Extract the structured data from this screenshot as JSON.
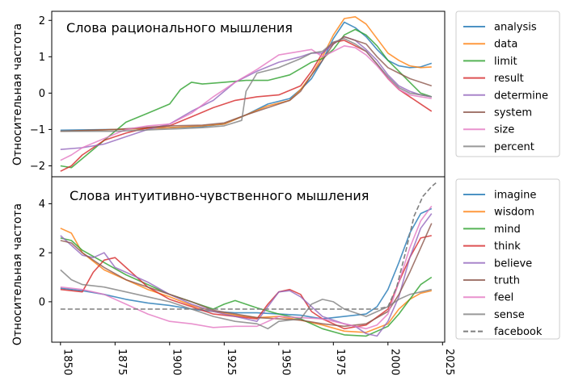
{
  "chart_data": [
    {
      "type": "line",
      "title": "Слова рационального мышления",
      "ylabel": "Относительная частота",
      "xlim": [
        1846,
        2026
      ],
      "ylim": [
        -2.3,
        2.25
      ],
      "yticks": [
        -2,
        -1,
        0,
        1,
        2
      ],
      "legend": "outside-right",
      "series": [
        {
          "name": "analysis",
          "color": "#1f77b4",
          "x": [
            1850,
            1875,
            1900,
            1915,
            1925,
            1935,
            1945,
            1955,
            1960,
            1965,
            1970,
            1975,
            1980,
            1985,
            1990,
            1995,
            2000,
            2005,
            2010,
            2015,
            2020
          ],
          "y": [
            -1.02,
            -1.0,
            -0.95,
            -0.92,
            -0.85,
            -0.6,
            -0.3,
            -0.15,
            0.1,
            0.4,
            0.9,
            1.5,
            1.95,
            1.8,
            1.55,
            1.2,
            0.9,
            0.75,
            0.7,
            0.72,
            0.82
          ]
        },
        {
          "name": "data",
          "color": "#ff7f0e",
          "x": [
            1850,
            1875,
            1900,
            1915,
            1925,
            1935,
            1945,
            1955,
            1960,
            1965,
            1970,
            1975,
            1980,
            1985,
            1990,
            1995,
            2000,
            2005,
            2010,
            2015,
            2020
          ],
          "y": [
            -1.05,
            -1.0,
            -0.95,
            -0.9,
            -0.85,
            -0.6,
            -0.35,
            -0.2,
            0.1,
            0.5,
            1.0,
            1.6,
            2.05,
            2.1,
            1.9,
            1.5,
            1.1,
            0.9,
            0.75,
            0.7,
            0.72
          ]
        },
        {
          "name": "limit",
          "color": "#2ca02c",
          "x": [
            1850,
            1855,
            1860,
            1870,
            1880,
            1890,
            1900,
            1905,
            1910,
            1915,
            1925,
            1935,
            1945,
            1955,
            1965,
            1970,
            1975,
            1980,
            1985,
            1990,
            1995,
            2000,
            2005,
            2010,
            2015,
            2020
          ],
          "y": [
            -2.0,
            -2.05,
            -1.8,
            -1.3,
            -0.8,
            -0.55,
            -0.3,
            0.1,
            0.3,
            0.25,
            0.3,
            0.35,
            0.35,
            0.5,
            0.85,
            0.95,
            1.2,
            1.6,
            1.75,
            1.6,
            1.3,
            0.9,
            0.6,
            0.3,
            0.0,
            -0.1
          ]
        },
        {
          "name": "result",
          "color": "#d62728",
          "x": [
            1850,
            1855,
            1860,
            1870,
            1880,
            1890,
            1900,
            1910,
            1920,
            1930,
            1940,
            1950,
            1960,
            1965,
            1970,
            1975,
            1980,
            1985,
            1990,
            1995,
            2000,
            2005,
            2010,
            2015,
            2020
          ],
          "y": [
            -2.15,
            -2.0,
            -1.7,
            -1.3,
            -1.1,
            -0.95,
            -0.9,
            -0.65,
            -0.4,
            -0.2,
            -0.1,
            -0.05,
            0.2,
            0.6,
            1.1,
            1.4,
            1.45,
            1.3,
            1.15,
            0.8,
            0.4,
            0.1,
            -0.1,
            -0.3,
            -0.5
          ]
        },
        {
          "name": "determine",
          "color": "#9467bd",
          "x": [
            1850,
            1860,
            1870,
            1880,
            1890,
            1900,
            1910,
            1920,
            1930,
            1940,
            1950,
            1960,
            1965,
            1970,
            1975,
            1980,
            1985,
            1990,
            1995,
            2000,
            2005,
            2010,
            2015,
            2020
          ],
          "y": [
            -1.55,
            -1.5,
            -1.4,
            -1.2,
            -1.0,
            -0.85,
            -0.5,
            -0.2,
            0.3,
            0.6,
            0.85,
            1.0,
            1.1,
            1.1,
            1.35,
            1.55,
            1.45,
            1.2,
            0.9,
            0.5,
            0.2,
            0.05,
            -0.05,
            -0.1
          ]
        },
        {
          "name": "system",
          "color": "#8c564b",
          "x": [
            1850,
            1875,
            1900,
            1915,
            1925,
            1935,
            1945,
            1955,
            1960,
            1965,
            1970,
            1975,
            1980,
            1985,
            1990,
            1995,
            2000,
            2005,
            2010,
            2015,
            2020
          ],
          "y": [
            -1.05,
            -1.0,
            -0.9,
            -0.88,
            -0.82,
            -0.6,
            -0.4,
            -0.2,
            0.05,
            0.5,
            0.9,
            1.35,
            1.55,
            1.45,
            1.35,
            1.0,
            0.7,
            0.55,
            0.4,
            0.3,
            0.2
          ]
        },
        {
          "name": "size",
          "color": "#e377c2",
          "x": [
            1850,
            1855,
            1860,
            1870,
            1880,
            1890,
            1900,
            1910,
            1920,
            1930,
            1940,
            1950,
            1960,
            1965,
            1970,
            1975,
            1980,
            1985,
            1990,
            1995,
            2000,
            2005,
            2010,
            2015,
            2020
          ],
          "y": [
            -1.85,
            -1.7,
            -1.5,
            -1.25,
            -1.0,
            -0.9,
            -0.85,
            -0.55,
            -0.1,
            0.3,
            0.65,
            1.05,
            1.15,
            1.2,
            1.0,
            1.15,
            1.3,
            1.25,
            1.05,
            0.75,
            0.4,
            0.1,
            -0.05,
            -0.1,
            -0.15
          ]
        },
        {
          "name": "percent",
          "color": "#7f7f7f",
          "x": [
            1850,
            1875,
            1895,
            1905,
            1915,
            1925,
            1933,
            1935,
            1940,
            1950,
            1960,
            1965,
            1970,
            1975,
            1980,
            1985,
            1990,
            1995,
            2000,
            2005,
            2010,
            2015,
            2020
          ],
          "y": [
            -1.05,
            -1.05,
            -1.0,
            -0.98,
            -0.95,
            -0.9,
            -0.75,
            0.05,
            0.55,
            0.7,
            0.95,
            1.1,
            1.15,
            1.4,
            1.5,
            1.35,
            1.15,
            0.8,
            0.45,
            0.15,
            0.0,
            -0.05,
            -0.1
          ]
        }
      ]
    },
    {
      "type": "line",
      "title": "Слова интуитивно-чувственного мышления",
      "ylabel": "Относительная частота",
      "xlabel": "",
      "xlim": [
        1846,
        2026
      ],
      "ylim": [
        -1.65,
        5.1
      ],
      "yticks": [
        0,
        2,
        4
      ],
      "xticks": [
        1850,
        1875,
        1900,
        1925,
        1950,
        1975,
        2000,
        2025
      ],
      "legend": "outside-right",
      "series": [
        {
          "name": "imagine",
          "color": "#1f77b4",
          "x": [
            1850,
            1860,
            1870,
            1880,
            1890,
            1900,
            1910,
            1920,
            1930,
            1940,
            1950,
            1960,
            1970,
            1980,
            1990,
            1995,
            2000,
            2005,
            2010,
            2015,
            2020
          ],
          "y": [
            0.55,
            0.45,
            0.3,
            0.1,
            -0.05,
            -0.15,
            -0.3,
            -0.4,
            -0.45,
            -0.45,
            -0.5,
            -0.55,
            -0.7,
            -0.6,
            -0.5,
            -0.2,
            0.5,
            1.6,
            2.8,
            3.6,
            3.8
          ]
        },
        {
          "name": "wisdom",
          "color": "#ff7f0e",
          "x": [
            1850,
            1855,
            1860,
            1870,
            1880,
            1890,
            1900,
            1910,
            1920,
            1930,
            1940,
            1950,
            1960,
            1970,
            1980,
            1990,
            2000,
            2005,
            2010,
            2015,
            2020
          ],
          "y": [
            3.0,
            2.8,
            2.0,
            1.3,
            0.9,
            0.5,
            0.2,
            -0.15,
            -0.4,
            -0.55,
            -0.65,
            -0.6,
            -0.75,
            -0.95,
            -1.2,
            -1.25,
            -0.9,
            -0.3,
            0.1,
            0.35,
            0.45
          ]
        },
        {
          "name": "mind",
          "color": "#2ca02c",
          "x": [
            1850,
            1855,
            1860,
            1870,
            1880,
            1890,
            1900,
            1910,
            1920,
            1925,
            1930,
            1940,
            1950,
            1960,
            1970,
            1980,
            1990,
            2000,
            2005,
            2010,
            2015,
            2020
          ],
          "y": [
            2.6,
            2.5,
            2.1,
            1.6,
            1.1,
            0.7,
            0.3,
            0.0,
            -0.3,
            -0.1,
            0.05,
            -0.25,
            -0.5,
            -0.7,
            -1.1,
            -1.35,
            -1.4,
            -1.0,
            -0.5,
            0.1,
            0.7,
            1.0
          ]
        },
        {
          "name": "think",
          "color": "#d62728",
          "x": [
            1850,
            1855,
            1860,
            1865,
            1870,
            1875,
            1880,
            1890,
            1900,
            1910,
            1920,
            1930,
            1940,
            1945,
            1950,
            1955,
            1960,
            1965,
            1970,
            1975,
            1980,
            1990,
            2000,
            2005,
            2010,
            2015,
            2020
          ],
          "y": [
            0.5,
            0.45,
            0.4,
            1.2,
            1.7,
            1.8,
            1.4,
            0.6,
            0.1,
            -0.2,
            -0.5,
            -0.6,
            -0.7,
            -0.1,
            0.4,
            0.5,
            0.3,
            -0.4,
            -0.7,
            -0.9,
            -1.1,
            -0.95,
            -0.3,
            0.8,
            1.8,
            2.6,
            2.7
          ]
        },
        {
          "name": "believe",
          "color": "#9467bd",
          "x": [
            1850,
            1855,
            1860,
            1865,
            1870,
            1875,
            1880,
            1890,
            1900,
            1910,
            1920,
            1930,
            1940,
            1945,
            1950,
            1955,
            1960,
            1970,
            1980,
            1985,
            1990,
            1995,
            2000,
            2005,
            2010,
            2015,
            2020
          ],
          "y": [
            2.7,
            2.3,
            1.9,
            1.8,
            2.0,
            1.4,
            1.2,
            0.8,
            0.3,
            -0.1,
            -0.4,
            -0.6,
            -0.8,
            -0.2,
            0.4,
            0.45,
            0.2,
            -0.6,
            -0.9,
            -1.0,
            -1.3,
            -1.4,
            -0.8,
            0.2,
            1.8,
            3.0,
            3.6
          ]
        },
        {
          "name": "truth",
          "color": "#8c564b",
          "x": [
            1850,
            1855,
            1860,
            1870,
            1880,
            1890,
            1900,
            1910,
            1920,
            1930,
            1940,
            1950,
            1960,
            1970,
            1980,
            1990,
            2000,
            2005,
            2010,
            2015,
            2020
          ],
          "y": [
            2.5,
            2.4,
            2.0,
            1.4,
            0.9,
            0.6,
            0.3,
            0.0,
            -0.35,
            -0.5,
            -0.65,
            -0.7,
            -0.75,
            -0.9,
            -1.0,
            -0.9,
            -0.4,
            0.3,
            1.2,
            2.2,
            3.2
          ]
        },
        {
          "name": "feel",
          "color": "#e377c2",
          "x": [
            1850,
            1860,
            1870,
            1880,
            1890,
            1900,
            1910,
            1920,
            1930,
            1940,
            1950,
            1960,
            1970,
            1980,
            1985,
            1990,
            1995,
            2000,
            2005,
            2010,
            2015,
            2020
          ],
          "y": [
            0.6,
            0.5,
            0.3,
            -0.1,
            -0.5,
            -0.8,
            -0.9,
            -1.05,
            -1.0,
            -1.0,
            -0.6,
            -0.65,
            -0.7,
            -0.9,
            -1.0,
            -1.1,
            -0.95,
            -0.5,
            0.8,
            2.2,
            3.3,
            3.9
          ]
        },
        {
          "name": "sense",
          "color": "#7f7f7f",
          "x": [
            1850,
            1855,
            1860,
            1870,
            1880,
            1890,
            1900,
            1910,
            1920,
            1930,
            1940,
            1945,
            1950,
            1960,
            1965,
            1970,
            1975,
            1980,
            1990,
            2000,
            2005,
            2010,
            2015,
            2020
          ],
          "y": [
            1.3,
            0.9,
            0.7,
            0.6,
            0.4,
            0.2,
            0.0,
            -0.3,
            -0.6,
            -0.8,
            -0.9,
            -1.1,
            -0.8,
            -0.7,
            -0.1,
            0.1,
            0.0,
            -0.3,
            -0.6,
            -0.2,
            0.1,
            0.3,
            0.4,
            0.5
          ]
        },
        {
          "name": "facebook",
          "color": "#7f7f7f",
          "dashed": true,
          "x": [
            1850,
            1900,
            1950,
            1995,
            2000,
            2004,
            2008,
            2012,
            2016,
            2020,
            2022
          ],
          "y": [
            -0.3,
            -0.3,
            -0.3,
            -0.3,
            -0.2,
            0.6,
            2.0,
            3.5,
            4.3,
            4.7,
            4.85
          ]
        }
      ]
    }
  ]
}
